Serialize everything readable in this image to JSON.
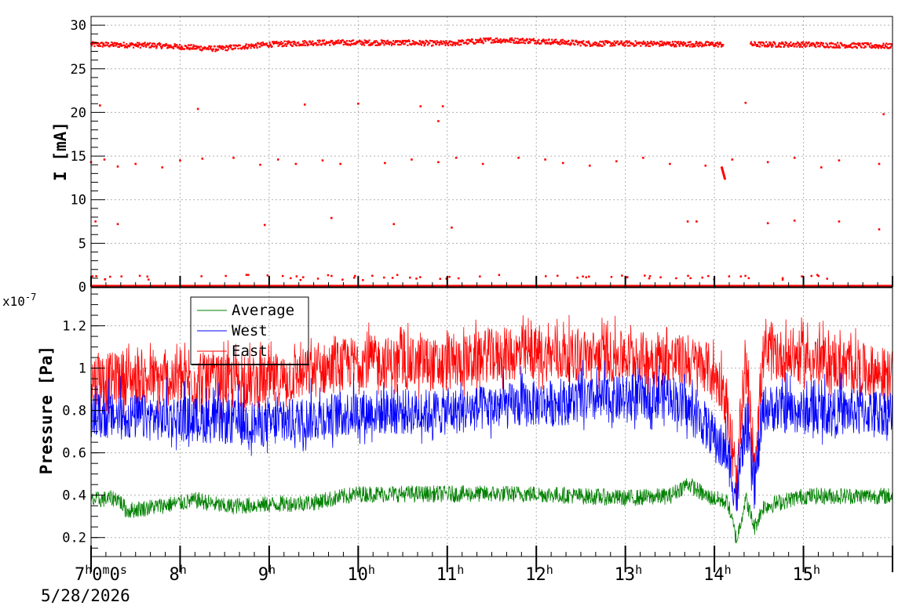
{
  "chart_data": [
    {
      "type": "scatter",
      "ylabel": "I [mA]",
      "ylim": [
        0,
        31
      ],
      "y_ticks": [
        "0",
        "5",
        "10",
        "15",
        "20",
        "25",
        "30"
      ],
      "grid": true,
      "series": [
        {
          "color": "#ff0000",
          "baseline": 27.8,
          "baseline_profile": [
            [
              0,
              27.8
            ],
            [
              0.7,
              27.7
            ],
            [
              1.4,
              27.3
            ],
            [
              2,
              27.8
            ],
            [
              2.5,
              28
            ],
            [
              3.5,
              28
            ],
            [
              4,
              27.9
            ],
            [
              4.5,
              28.3
            ],
            [
              5,
              28.2
            ],
            [
              5.6,
              27.9
            ],
            [
              6.2,
              27.9
            ],
            [
              7.1,
              27.8
            ],
            [
              7.3,
              null
            ],
            [
              7.4,
              27.8
            ],
            [
              8,
              27.8
            ],
            [
              9,
              27.6
            ]
          ],
          "level_zero": 0.1,
          "outliers_20": [
            [
              0.1,
              20.8
            ],
            [
              1.2,
              20.4
            ],
            [
              2.4,
              20.9
            ],
            [
              3,
              21
            ],
            [
              3.7,
              20.7
            ],
            [
              3.95,
              20.7
            ],
            [
              3.9,
              19
            ],
            [
              7.35,
              21.1
            ],
            [
              8.9,
              19.8
            ]
          ],
          "outliers_14": [
            [
              0,
              14.3
            ],
            [
              0.15,
              14.6
            ],
            [
              0.3,
              13.8
            ],
            [
              0.5,
              14.1
            ],
            [
              0.8,
              13.7
            ],
            [
              1,
              14.5
            ],
            [
              1.25,
              14.7
            ],
            [
              1.6,
              14.8
            ],
            [
              1.9,
              14
            ],
            [
              2.1,
              14.6
            ],
            [
              2.3,
              14.1
            ],
            [
              2.6,
              14.5
            ],
            [
              2.8,
              14.1
            ],
            [
              3.3,
              14.2
            ],
            [
              3.6,
              14.6
            ],
            [
              3.9,
              14.3
            ],
            [
              4.1,
              14.8
            ],
            [
              4.4,
              14.1
            ],
            [
              4.8,
              14.8
            ],
            [
              5.1,
              14.6
            ],
            [
              5.3,
              14.2
            ],
            [
              5.6,
              13.9
            ],
            [
              5.9,
              14.4
            ],
            [
              6.2,
              14.8
            ],
            [
              6.5,
              14.1
            ],
            [
              6.9,
              13.9
            ],
            [
              7.2,
              14.6
            ],
            [
              7.6,
              14.3
            ],
            [
              7.9,
              14.8
            ],
            [
              8.2,
              13.7
            ],
            [
              8.4,
              14.5
            ],
            [
              8.85,
              14.1
            ]
          ],
          "outliers_7": [
            [
              0.05,
              7.5
            ],
            [
              0.3,
              7.2
            ],
            [
              1.95,
              7.1
            ],
            [
              2.7,
              7.9
            ],
            [
              3.4,
              7.2
            ],
            [
              4.05,
              6.8
            ],
            [
              6.7,
              7.5
            ],
            [
              6.8,
              7.5
            ],
            [
              7.6,
              7.3
            ],
            [
              7.9,
              7.6
            ],
            [
              8.4,
              7.5
            ],
            [
              8.85,
              6.6
            ]
          ],
          "drop_segment": [
            [
              7.08,
              13.8
            ],
            [
              7.12,
              12.3
            ]
          ]
        }
      ]
    },
    {
      "type": "line",
      "ylabel": "Pressure [Pa]",
      "y_exponent": "x10",
      "y_exponent_power": "-7",
      "ylim": [
        0.11,
        1.38
      ],
      "y_ticks": [
        "0.2",
        "0.4",
        "0.6",
        "0.8",
        "1",
        "1.2"
      ],
      "grid": true,
      "x_tick_labels": [
        "7",
        "8",
        "9",
        "10",
        "11",
        "12",
        "13",
        "14",
        "15"
      ],
      "x_first_label": {
        "h": "7",
        "m": "0",
        "s": "0"
      },
      "x_unit_h": "h",
      "x_unit_m": "m",
      "x_unit_s": "s",
      "x_date": "5/28/2026",
      "xlim_hours": [
        7.0,
        16.0
      ],
      "legend_position": "top-left",
      "series": [
        {
          "name": "Average",
          "color": "#008000",
          "base": 0.38,
          "spread": 0.08,
          "profile": [
            [
              7,
              0.38
            ],
            [
              7.3,
              0.39
            ],
            [
              7.4,
              0.33
            ],
            [
              8.2,
              0.38
            ],
            [
              8.5,
              0.35
            ],
            [
              9.5,
              0.37
            ],
            [
              10,
              0.41
            ],
            [
              11,
              0.41
            ],
            [
              12,
              0.41
            ],
            [
              13,
              0.39
            ],
            [
              13.5,
              0.4
            ],
            [
              13.7,
              0.46
            ],
            [
              13.9,
              0.4
            ],
            [
              14.15,
              0.37
            ],
            [
              14.25,
              0.19
            ],
            [
              14.35,
              0.39
            ],
            [
              14.45,
              0.25
            ],
            [
              14.55,
              0.35
            ],
            [
              15,
              0.4
            ],
            [
              16,
              0.4
            ]
          ]
        },
        {
          "name": "West",
          "color": "#0000ff",
          "base": 0.75,
          "spread": 0.22,
          "profile": [
            [
              7,
              0.74
            ],
            [
              8,
              0.73
            ],
            [
              9,
              0.7
            ],
            [
              10,
              0.76
            ],
            [
              11,
              0.76
            ],
            [
              12,
              0.8
            ],
            [
              13,
              0.82
            ],
            [
              13.5,
              0.84
            ],
            [
              13.9,
              0.7
            ],
            [
              14.15,
              0.55
            ],
            [
              14.25,
              0.35
            ],
            [
              14.35,
              0.7
            ],
            [
              14.45,
              0.4
            ],
            [
              14.55,
              0.78
            ],
            [
              15,
              0.76
            ],
            [
              16,
              0.76
            ]
          ]
        },
        {
          "name": "East",
          "color": "#ff0000",
          "base": 0.95,
          "spread": 0.25,
          "profile": [
            [
              7,
              0.94
            ],
            [
              8,
              0.93
            ],
            [
              9,
              0.92
            ],
            [
              10,
              1.02
            ],
            [
              11,
              1.0
            ],
            [
              11.5,
              1.05
            ],
            [
              12,
              1.05
            ],
            [
              13,
              1.04
            ],
            [
              13.5,
              1.03
            ],
            [
              13.9,
              1.0
            ],
            [
              14.1,
              0.9
            ],
            [
              14.25,
              0.42
            ],
            [
              14.35,
              1.0
            ],
            [
              14.45,
              0.55
            ],
            [
              14.55,
              1.05
            ],
            [
              15,
              1.04
            ],
            [
              16,
              0.95
            ]
          ]
        }
      ]
    }
  ]
}
